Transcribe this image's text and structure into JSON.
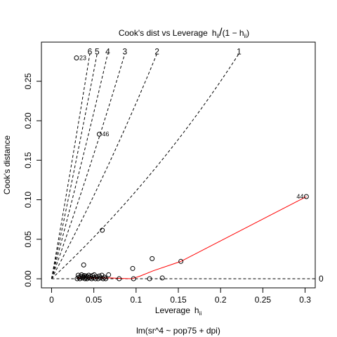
{
  "chart_data": {
    "type": "scatter",
    "title_main": "Cook's dist vs Leverage",
    "title_formula": "h_ii/(1 - h_ii)",
    "xlabel": "Leverage",
    "xlabel_sub": "h_ii",
    "sublabel": "lm(sr^4 ~ pop75 + dpi)",
    "ylabel": "Cook's distance",
    "xlim": [
      -0.012,
      0.312
    ],
    "ylim": [
      -0.0115,
      0.2995
    ],
    "xticks": [
      {
        "value": 0,
        "label": "0"
      },
      {
        "value": 0.05,
        "label": "0.05"
      },
      {
        "value": 0.1,
        "label": "0.1"
      },
      {
        "value": 0.15,
        "label": "0.15"
      },
      {
        "value": 0.2,
        "label": "0.2"
      },
      {
        "value": 0.25,
        "label": "0.25"
      },
      {
        "value": 0.3,
        "label": "0.3"
      }
    ],
    "yticks": [
      {
        "value": 0,
        "label": "0.00"
      },
      {
        "value": 0.05,
        "label": "0.05"
      },
      {
        "value": 0.1,
        "label": "0.10"
      },
      {
        "value": 0.15,
        "label": "0.15"
      },
      {
        "value": 0.2,
        "label": "0.20"
      },
      {
        "value": 0.25,
        "label": "0.25"
      }
    ],
    "points": [
      [
        0.0303,
        0.0
      ],
      [
        0.0315,
        0.0045
      ],
      [
        0.0325,
        0.002
      ],
      [
        0.0335,
        0.0
      ],
      [
        0.0345,
        0.003
      ],
      [
        0.0355,
        0.005
      ],
      [
        0.0365,
        0.001
      ],
      [
        0.0375,
        0.0025
      ],
      [
        0.0385,
        0.004
      ],
      [
        0.0395,
        0.0
      ],
      [
        0.0405,
        0.0015
      ],
      [
        0.041,
        0.0035
      ],
      [
        0.042,
        0.0
      ],
      [
        0.043,
        0.002
      ],
      [
        0.044,
        0.0045
      ],
      [
        0.045,
        0.001
      ],
      [
        0.046,
        0.003
      ],
      [
        0.0475,
        0.0
      ],
      [
        0.0485,
        0.004
      ],
      [
        0.0495,
        0.0015
      ],
      [
        0.0505,
        0.005
      ],
      [
        0.052,
        0.0
      ],
      [
        0.0535,
        0.0025
      ],
      [
        0.055,
        0.0
      ],
      [
        0.0565,
        0.0035
      ],
      [
        0.058,
        0.001
      ],
      [
        0.0595,
        0.0045
      ],
      [
        0.061,
        0.0
      ],
      [
        0.0625,
        0.002
      ],
      [
        0.064,
        0.0
      ],
      [
        0.0675,
        0.005
      ],
      [
        0.038,
        0.0175
      ],
      [
        0.08,
        0.0
      ],
      [
        0.096,
        0.013
      ],
      [
        0.097,
        0.0
      ],
      [
        0.116,
        0.0
      ],
      [
        0.119,
        0.0255
      ],
      [
        0.131,
        0.001
      ],
      [
        0.153,
        0.022
      ],
      [
        0.06,
        0.0615
      ],
      [
        0.0295,
        0.2795
      ],
      [
        0.0565,
        0.183
      ],
      [
        0.3015,
        0.104
      ]
    ],
    "labeled_points": [
      {
        "label": "23",
        "x": 0.0295,
        "y": 0.2795,
        "side": "right"
      },
      {
        "label": "46",
        "x": 0.0565,
        "y": 0.183,
        "side": "right"
      },
      {
        "label": "44",
        "x": 0.3015,
        "y": 0.104,
        "side": "left"
      }
    ],
    "smooth_line": [
      [
        0.03,
        0.001
      ],
      [
        0.04,
        0.0015
      ],
      [
        0.05,
        0.001
      ],
      [
        0.06,
        0.001
      ],
      [
        0.07,
        0.001
      ],
      [
        0.08,
        0.0005
      ],
      [
        0.095,
        0.0
      ],
      [
        0.105,
        0.0035
      ],
      [
        0.12,
        0.01
      ],
      [
        0.153,
        0.022
      ],
      [
        0.3015,
        0.104
      ]
    ],
    "contour_levels": [
      {
        "label": "0",
        "slope": 0
      },
      {
        "label": "1",
        "slope": 1
      },
      {
        "label": "2",
        "slope": 2
      },
      {
        "label": "3",
        "slope": 3
      },
      {
        "label": "4",
        "slope": 4
      },
      {
        "label": "5",
        "slope": 5
      },
      {
        "label": "6",
        "slope": 6
      }
    ]
  }
}
